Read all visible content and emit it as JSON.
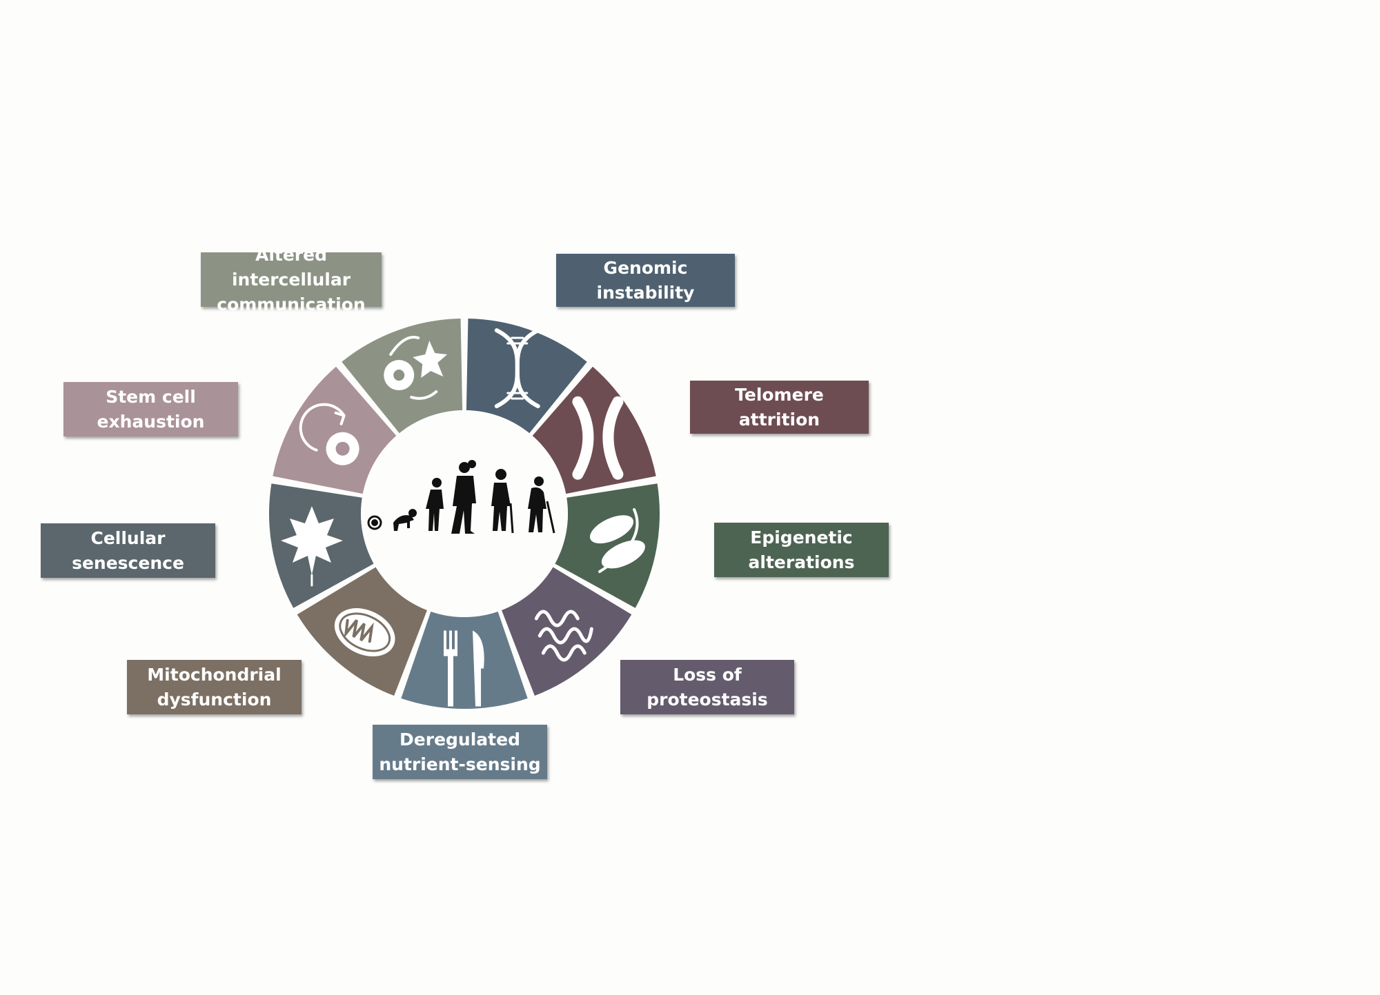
{
  "hallmarks": [
    {
      "id": "genomic",
      "lines": [
        "Genomic instability"
      ],
      "color": "#4f6170",
      "icon": "dna-icon"
    },
    {
      "id": "telomere",
      "lines": [
        "Telomere attrition"
      ],
      "color": "#6e4d52",
      "icon": "chromosome-icon"
    },
    {
      "id": "epigenetic",
      "lines": [
        "Epigenetic",
        "alterations"
      ],
      "color": "#4d6452",
      "icon": "chromatin-icon"
    },
    {
      "id": "proteostasis",
      "lines": [
        "Loss of",
        "proteostasis"
      ],
      "color": "#645c6c",
      "icon": "protein-icon"
    },
    {
      "id": "nutrient",
      "lines": [
        "Deregulated",
        "nutrient-sensing"
      ],
      "color": "#667b8a",
      "icon": "fork-knife-icon"
    },
    {
      "id": "mitochondrial",
      "lines": [
        "Mitochondrial",
        "dysfunction"
      ],
      "color": "#7c7064",
      "icon": "mitochondrion-icon"
    },
    {
      "id": "senescence",
      "lines": [
        "Cellular",
        "senescence"
      ],
      "color": "#5b676c",
      "icon": "leaf-icon"
    },
    {
      "id": "stemcell",
      "lines": [
        "Stem cell",
        "exhaustion"
      ],
      "color": "#aa9299",
      "icon": "stem-cell-icon"
    },
    {
      "id": "intercellular",
      "lines": [
        "Altered intercellular",
        "communication"
      ],
      "color": "#8c9384",
      "icon": "cell-communication-icon"
    }
  ],
  "center": {
    "icon": "human-life-stages-icon"
  }
}
